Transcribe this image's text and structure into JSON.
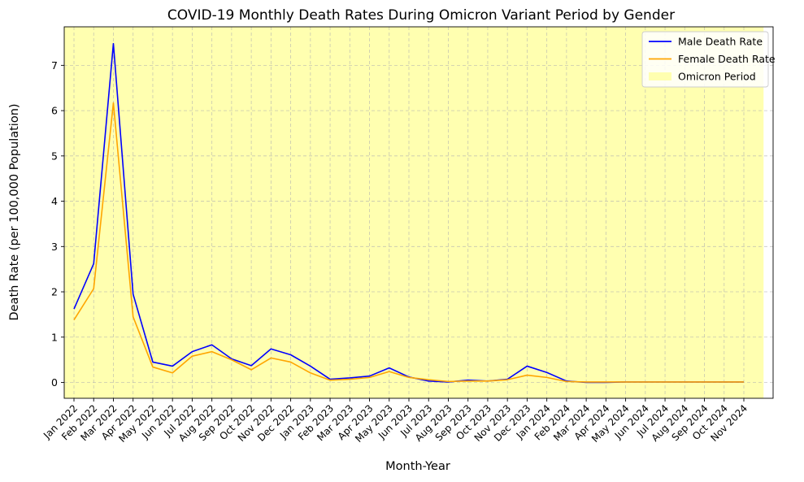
{
  "chart_data": {
    "type": "line",
    "title": "COVID-19 Monthly Death Rates During Omicron Variant Period by Gender",
    "xlabel": "Month-Year",
    "ylabel": "Death Rate (per 100,000 Population)",
    "categories": [
      "Jan 2022",
      "Feb 2022",
      "Mar 2022",
      "Apr 2022",
      "May 2022",
      "Jun 2022",
      "Jul 2022",
      "Aug 2022",
      "Sep 2022",
      "Oct 2022",
      "Nov 2022",
      "Dec 2022",
      "Jan 2023",
      "Feb 2023",
      "Mar 2023",
      "Apr 2023",
      "May 2023",
      "Jun 2023",
      "Jul 2023",
      "Aug 2023",
      "Sep 2023",
      "Oct 2023",
      "Nov 2023",
      "Dec 2023",
      "Jan 2024",
      "Feb 2024",
      "Mar 2024",
      "Apr 2024",
      "May 2024",
      "Jun 2024",
      "Jul 2024",
      "Aug 2024",
      "Sep 2024",
      "Oct 2024",
      "Nov 2024"
    ],
    "ylim": [
      -0.35,
      7.85
    ],
    "yticks": [
      0,
      1,
      2,
      3,
      4,
      5,
      6,
      7
    ],
    "grid": true,
    "legend_position": "top-right",
    "shaded_region": {
      "name": "Omicron Period",
      "start": "Jan 2022",
      "end": "Nov 2024",
      "color": "#ffffb0"
    },
    "series": [
      {
        "name": "Male Death Rate",
        "color": "#0000ff",
        "values": [
          1.62,
          2.62,
          7.48,
          1.95,
          0.45,
          0.36,
          0.68,
          0.83,
          0.52,
          0.37,
          0.74,
          0.61,
          0.36,
          0.07,
          0.1,
          0.14,
          0.32,
          0.12,
          0.03,
          0.01,
          0.05,
          0.03,
          0.07,
          0.36,
          0.22,
          0.03,
          0.0,
          0.0,
          0.01,
          0.01,
          0.01,
          0.01,
          0.01,
          0.01,
          0.01
        ]
      },
      {
        "name": "Female Death Rate",
        "color": "#ffa500",
        "values": [
          1.38,
          2.07,
          6.17,
          1.45,
          0.34,
          0.21,
          0.58,
          0.68,
          0.5,
          0.28,
          0.54,
          0.45,
          0.21,
          0.05,
          0.07,
          0.11,
          0.24,
          0.11,
          0.06,
          0.02,
          0.03,
          0.03,
          0.06,
          0.16,
          0.11,
          0.02,
          0.01,
          0.01,
          0.01,
          0.01,
          0.01,
          0.01,
          0.01,
          0.01,
          0.01
        ]
      }
    ]
  }
}
